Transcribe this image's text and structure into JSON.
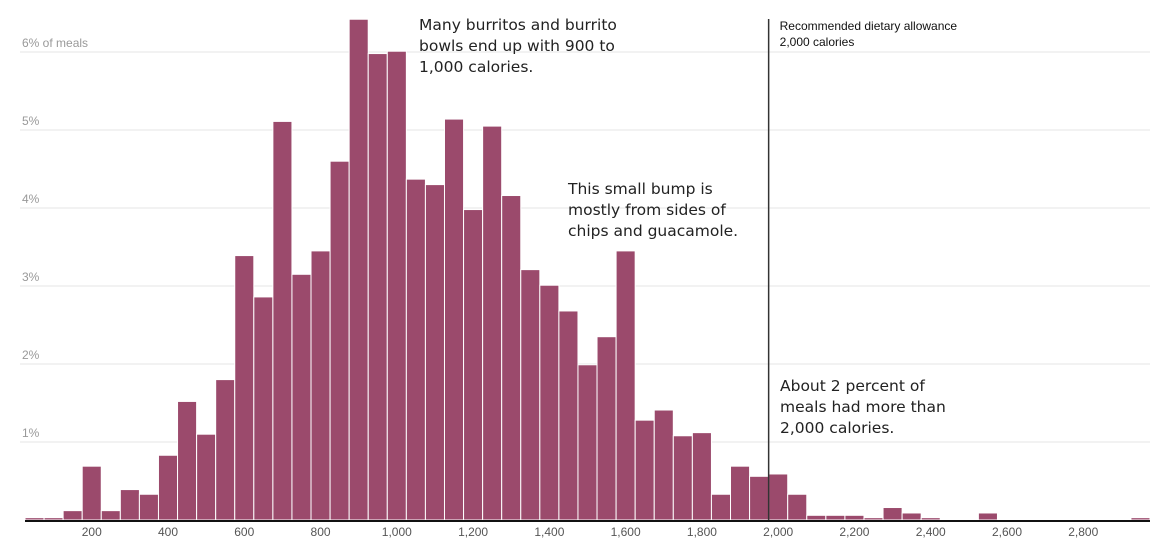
{
  "chart_data": {
    "type": "bar",
    "title": "",
    "xlabel": "",
    "ylabel": "",
    "unit_label": "6% of meals",
    "bin_width": 50,
    "x_start": 25,
    "xlim": [
      25,
      2975
    ],
    "ylim": [
      0,
      6.4
    ],
    "grid": true,
    "y_ticks": [
      {
        "value": 1,
        "label": "1%"
      },
      {
        "value": 2,
        "label": "2%"
      },
      {
        "value": 3,
        "label": "3%"
      },
      {
        "value": 4,
        "label": "4%"
      },
      {
        "value": 5,
        "label": "5%"
      },
      {
        "value": 6,
        "label": "6% of meals"
      }
    ],
    "x_ticks": [
      {
        "value": 200,
        "label": "200"
      },
      {
        "value": 400,
        "label": "400"
      },
      {
        "value": 600,
        "label": "600"
      },
      {
        "value": 800,
        "label": "800"
      },
      {
        "value": 1000,
        "label": "1,000"
      },
      {
        "value": 1200,
        "label": "1,200"
      },
      {
        "value": 1400,
        "label": "1,400"
      },
      {
        "value": 1600,
        "label": "1,600"
      },
      {
        "value": 1800,
        "label": "1,800"
      },
      {
        "value": 2000,
        "label": "2,000"
      },
      {
        "value": 2200,
        "label": "2,200"
      },
      {
        "value": 2400,
        "label": "2,400"
      },
      {
        "value": 2600,
        "label": "2,600"
      },
      {
        "value": 2800,
        "label": "2,800"
      }
    ],
    "values": [
      0.03,
      0.03,
      0.12,
      0.69,
      0.12,
      0.39,
      0.33,
      0.83,
      1.52,
      1.1,
      1.8,
      3.39,
      2.86,
      5.11,
      3.15,
      3.45,
      4.6,
      6.42,
      5.98,
      6.01,
      4.37,
      4.3,
      5.14,
      3.98,
      5.05,
      4.16,
      3.21,
      3.01,
      2.68,
      1.99,
      2.35,
      3.45,
      1.28,
      1.41,
      1.08,
      1.12,
      0.33,
      0.69,
      0.56,
      0.59,
      0.33,
      0.06,
      0.06,
      0.06,
      0.03,
      0.16,
      0.09,
      0.03,
      0.0,
      0.0,
      0.09,
      0.0,
      0.0,
      0.0,
      0.0,
      0.0,
      0.0,
      0.0,
      0.03
    ],
    "reference_line": {
      "value": 1975,
      "label_line1": "Recommended dietary allowance",
      "label_line2": "2,000 calories"
    },
    "annotations": [
      {
        "id": "peak",
        "text": "Many burritos and burrito bowls end up with 900 to 1,000 calories."
      },
      {
        "id": "bump",
        "text": "This small bump is mostly from sides of chips and guacamole."
      },
      {
        "id": "over",
        "text": "About 2 percent of meals had more than 2,000 calories."
      }
    ]
  }
}
